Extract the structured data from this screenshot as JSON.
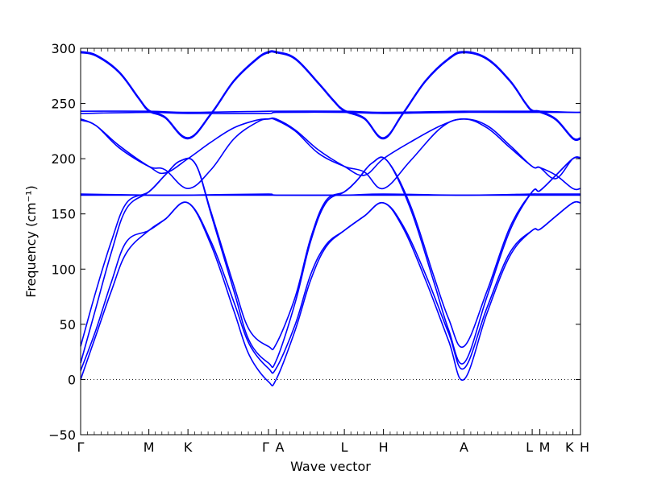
{
  "chart_data": {
    "type": "line",
    "title": "",
    "xlabel": "Wave vector",
    "ylabel": "Frequency (cm⁻¹)",
    "ylim": [
      -50,
      300
    ],
    "yticks": [
      -50,
      0,
      50,
      100,
      150,
      200,
      250,
      300
    ],
    "ytick_labels": [
      "−50",
      "0",
      "50",
      "100",
      "150",
      "200",
      "250",
      "300"
    ],
    "xlim": [
      0,
      6.52
    ],
    "xticks": [
      {
        "label": "Γ",
        "x": 0
      },
      {
        "label": "M",
        "x": 0.89
      },
      {
        "label": "K",
        "x": 1.4
      },
      {
        "label": "Γ",
        "x": 2.45
      },
      {
        "label": "A",
        "x": 2.55
      },
      {
        "label": "L",
        "x": 3.44
      },
      {
        "label": "H",
        "x": 3.95
      },
      {
        "label": "A",
        "x": 5.0
      },
      {
        "label": "L",
        "x": 5.89
      },
      {
        "label": "M",
        "x": 5.99
      },
      {
        "label": "K",
        "x": 6.42
      },
      {
        "label": "H",
        "x": 6.52
      }
    ],
    "zero_line": 0,
    "grid": false,
    "legend": "none",
    "line_color": "#0000ff",
    "series": [
      {
        "x": [
          0,
          0.2,
          0.4,
          0.6,
          0.89,
          1.1,
          1.4,
          1.7,
          2.0,
          2.2,
          2.45,
          2.55,
          2.8,
          3.0,
          3.2,
          3.44,
          3.7,
          3.95,
          4.2,
          4.5,
          4.8,
          5.0,
          5.3,
          5.6,
          5.89,
          5.99,
          6.2,
          6.42,
          6.52
        ],
        "values": [
          0,
          40,
          80,
          115,
          135,
          145,
          160,
          122,
          62,
          22,
          -2,
          0,
          45,
          90,
          120,
          135,
          148,
          160,
          138,
          90,
          35,
          0,
          60,
          112,
          135,
          136,
          148,
          160,
          160
        ]
      },
      {
        "x": [
          0,
          0.2,
          0.4,
          0.6,
          0.89,
          1.1,
          1.4,
          1.7,
          2.0,
          2.2,
          2.45,
          2.55,
          2.8,
          3.0,
          3.2,
          3.44,
          3.7,
          3.95,
          4.2,
          4.5,
          4.8,
          5.0,
          5.3,
          5.6,
          5.89,
          5.99,
          6.2,
          6.42,
          6.52
        ],
        "values": [
          8,
          45,
          88,
          125,
          135,
          145,
          160,
          125,
          70,
          32,
          10,
          10,
          50,
          95,
          122,
          135,
          148,
          160,
          140,
          95,
          42,
          10,
          65,
          115,
          135,
          136,
          148,
          160,
          160
        ]
      },
      {
        "x": [
          0,
          0.2,
          0.4,
          0.6,
          0.89,
          1.1,
          1.3,
          1.5,
          1.7,
          2.0,
          2.2,
          2.45,
          2.55,
          2.8,
          3.0,
          3.2,
          3.44,
          3.6,
          3.8,
          4.0,
          4.3,
          4.6,
          4.8,
          5.0,
          5.3,
          5.6,
          5.89,
          5.99,
          6.2,
          6.42,
          6.52
        ],
        "values": [
          15,
          65,
          115,
          155,
          170,
          185,
          198,
          195,
          150,
          80,
          35,
          15,
          17,
          70,
          125,
          160,
          170,
          180,
          196,
          198,
          155,
          90,
          45,
          15,
          75,
          135,
          170,
          171,
          185,
          200,
          201
        ]
      },
      {
        "x": [
          0,
          0.2,
          0.4,
          0.6,
          0.89,
          1.1,
          1.3,
          1.5,
          1.7,
          2.0,
          2.2,
          2.45,
          2.55,
          2.8,
          3.0,
          3.2,
          3.44,
          3.6,
          3.8,
          4.0,
          4.3,
          4.6,
          4.8,
          5.0,
          5.3,
          5.6,
          5.89,
          5.99,
          6.2,
          6.42,
          6.52
        ],
        "values": [
          30,
          80,
          125,
          160,
          170,
          185,
          198,
          195,
          152,
          85,
          45,
          30,
          32,
          75,
          128,
          162,
          170,
          180,
          196,
          198,
          158,
          95,
          55,
          30,
          80,
          138,
          170,
          171,
          185,
          200,
          201
        ]
      },
      {
        "x": [
          0,
          0.89,
          1.4,
          2.45,
          2.55,
          3.44,
          3.95,
          5.0,
          5.89,
          5.99,
          6.42,
          6.52
        ],
        "values": [
          167,
          167,
          167,
          167,
          167,
          167,
          167,
          167,
          167,
          167,
          167,
          167
        ]
      },
      {
        "x": [
          0,
          0.89,
          1.4,
          2.45,
          2.55,
          3.44,
          3.95,
          5.0,
          5.89,
          5.99,
          6.42,
          6.52
        ],
        "values": [
          168,
          167,
          167,
          168,
          167,
          167,
          168,
          167,
          168,
          168,
          168,
          168
        ]
      },
      {
        "x": [
          0,
          0.2,
          0.5,
          0.89,
          1.1,
          1.4,
          1.7,
          2.0,
          2.3,
          2.45,
          2.55,
          2.8,
          3.1,
          3.44,
          3.7,
          3.95,
          4.3,
          4.7,
          5.0,
          5.3,
          5.6,
          5.89,
          5.99,
          6.2,
          6.42,
          6.52
        ],
        "values": [
          235,
          230,
          210,
          193,
          190,
          173,
          190,
          218,
          233,
          236,
          235,
          225,
          205,
          193,
          188,
          173,
          198,
          228,
          236,
          228,
          210,
          193,
          192,
          185,
          173,
          173
        ]
      },
      {
        "x": [
          0,
          0.2,
          0.5,
          0.89,
          1.1,
          1.4,
          1.7,
          2.0,
          2.3,
          2.45,
          2.55,
          2.8,
          3.1,
          3.44,
          3.7,
          3.95,
          4.3,
          4.7,
          5.0,
          5.3,
          5.6,
          5.89,
          5.99,
          6.2,
          6.42,
          6.52
        ],
        "values": [
          236,
          230,
          212,
          193,
          187,
          200,
          215,
          228,
          235,
          236,
          236,
          226,
          208,
          193,
          185,
          200,
          215,
          230,
          236,
          230,
          212,
          193,
          192,
          182,
          200,
          200
        ]
      },
      {
        "x": [
          0,
          0.89,
          1.4,
          2.45,
          2.55,
          3.44,
          3.95,
          5.0,
          5.89,
          5.99,
          6.42,
          6.52
        ],
        "values": [
          241,
          242,
          241,
          241,
          242,
          242,
          241,
          242,
          242,
          242,
          242,
          242
        ]
      },
      {
        "x": [
          0,
          0.89,
          1.4,
          2.45,
          2.55,
          3.44,
          3.95,
          5.0,
          5.89,
          5.99,
          6.42,
          6.52
        ],
        "values": [
          243,
          243,
          242,
          243,
          243,
          243,
          242,
          243,
          243,
          243,
          242,
          242
        ]
      },
      {
        "x": [
          0,
          0.2,
          0.5,
          0.75,
          0.89,
          1.1,
          1.4,
          1.7,
          2.0,
          2.3,
          2.45,
          2.55,
          2.8,
          3.1,
          3.3,
          3.44,
          3.7,
          3.95,
          4.2,
          4.5,
          4.8,
          5.0,
          5.3,
          5.6,
          5.8,
          5.89,
          5.99,
          6.2,
          6.42,
          6.52
        ],
        "values": [
          296,
          293,
          278,
          255,
          243,
          237,
          218,
          240,
          270,
          290,
          296,
          296,
          290,
          268,
          252,
          243,
          236,
          218,
          240,
          270,
          290,
          296,
          290,
          270,
          250,
          243,
          242,
          235,
          218,
          218
        ]
      },
      {
        "x": [
          0,
          0.2,
          0.5,
          0.75,
          0.89,
          1.1,
          1.4,
          1.7,
          2.0,
          2.3,
          2.45,
          2.55,
          2.8,
          3.1,
          3.3,
          3.44,
          3.7,
          3.95,
          4.2,
          4.5,
          4.8,
          5.0,
          5.3,
          5.6,
          5.8,
          5.89,
          5.99,
          6.2,
          6.42,
          6.52
        ],
        "values": [
          297,
          294,
          279,
          256,
          244,
          238,
          219,
          241,
          271,
          291,
          297,
          297,
          291,
          269,
          253,
          244,
          237,
          219,
          241,
          271,
          291,
          297,
          291,
          271,
          251,
          244,
          243,
          236,
          219,
          219
        ]
      }
    ]
  }
}
